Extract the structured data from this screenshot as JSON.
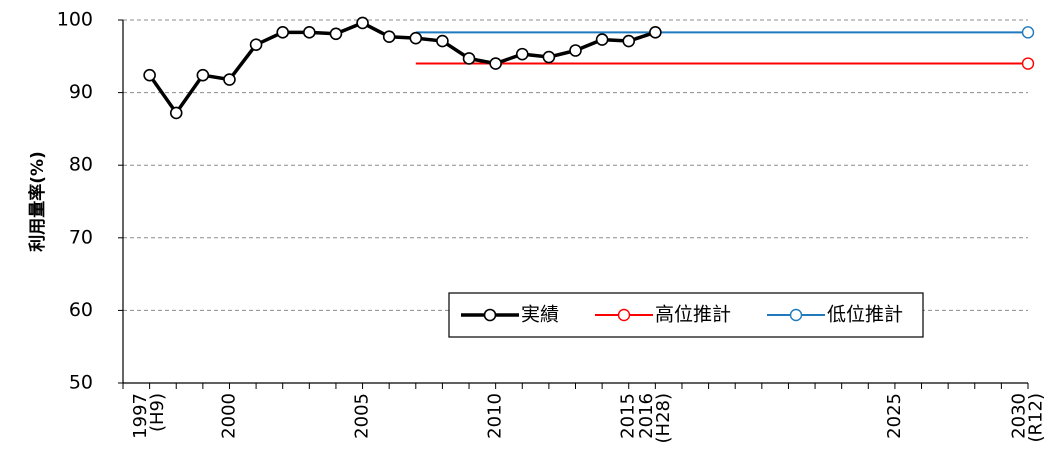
{
  "chart_data": {
    "type": "line",
    "ylabel": "利用量率(%)",
    "ylim": [
      50,
      100
    ],
    "y_ticks": [
      50,
      60,
      70,
      80,
      90,
      100
    ],
    "xlim": [
      1996,
      2030
    ],
    "grid": true,
    "legend_position": "lower-right",
    "x_tick_labels": [
      {
        "x": 1997,
        "lines": [
          "1997",
          "(H9)"
        ]
      },
      {
        "x": 2000,
        "lines": [
          "2000"
        ]
      },
      {
        "x": 2005,
        "lines": [
          "2005"
        ]
      },
      {
        "x": 2010,
        "lines": [
          "2010"
        ]
      },
      {
        "x": 2015,
        "lines": [
          "2015"
        ]
      },
      {
        "x": 2016,
        "lines": [
          "2016",
          "(H28)"
        ]
      },
      {
        "x": 2025,
        "lines": [
          "2025"
        ]
      },
      {
        "x": 2030,
        "lines": [
          "2030",
          "(R12)"
        ]
      }
    ],
    "series": [
      {
        "name": "実績",
        "color": "#000000",
        "x": [
          1997,
          1998,
          1999,
          2000,
          2001,
          2002,
          2003,
          2004,
          2005,
          2006,
          2007,
          2008,
          2009,
          2010,
          2011,
          2012,
          2013,
          2014,
          2015,
          2016
        ],
        "y": [
          92.4,
          87.2,
          92.4,
          91.8,
          96.6,
          98.3,
          98.3,
          98.1,
          99.6,
          97.7,
          97.5,
          97.1,
          94.7,
          94.0,
          95.3,
          94.9,
          95.8,
          97.3,
          97.1,
          98.3
        ]
      },
      {
        "name": "高位推計",
        "color": "#ff0000",
        "x": [
          2007,
          2030
        ],
        "y": [
          94.0,
          94.0
        ]
      },
      {
        "name": "低位推計",
        "color": "#1f7bbd",
        "x": [
          2007,
          2030
        ],
        "y": [
          98.3,
          98.3
        ]
      }
    ]
  }
}
